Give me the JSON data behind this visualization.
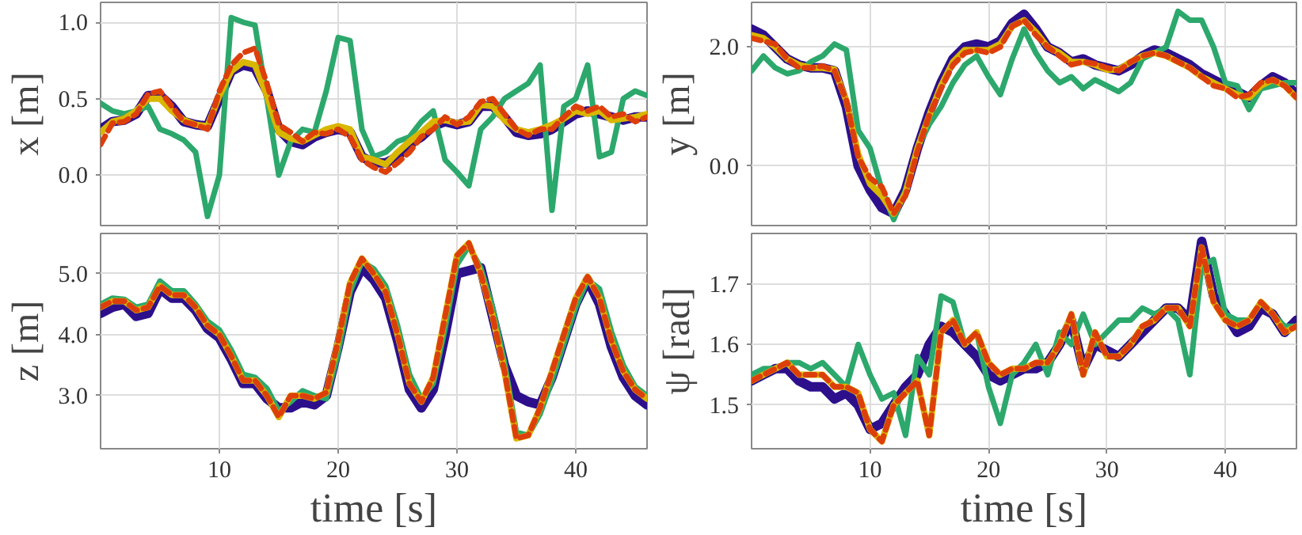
{
  "chart_data": [
    {
      "type": "line",
      "ylabel": "x [m]",
      "tick_labels": "y",
      "grid": true,
      "xlim": [
        0,
        46
      ],
      "xticks": [
        10,
        20,
        30,
        40
      ],
      "ylim": [
        -0.33,
        1.13
      ],
      "yticks": [
        {
          "value": 0,
          "label": "0.0"
        },
        {
          "value": 0.5,
          "label": "0.5"
        },
        {
          "value": 1,
          "label": "1.0"
        }
      ],
      "x": [
        0,
        1,
        2,
        3,
        4,
        5,
        6,
        7,
        8,
        9,
        10,
        11,
        12,
        13,
        14,
        15,
        16,
        17,
        18,
        19,
        20,
        21,
        22,
        23,
        24,
        25,
        26,
        27,
        28,
        29,
        30,
        31,
        32,
        33,
        34,
        35,
        36,
        37,
        38,
        39,
        40,
        41,
        42,
        43,
        44,
        45,
        46
      ],
      "series": [
        {
          "color": "#2d0f8c",
          "values": [
            0.3,
            0.35,
            0.36,
            0.4,
            0.52,
            0.52,
            0.45,
            0.35,
            0.33,
            0.32,
            0.5,
            0.68,
            0.72,
            0.7,
            0.55,
            0.3,
            0.22,
            0.2,
            0.25,
            0.28,
            0.3,
            0.28,
            0.12,
            0.08,
            0.08,
            0.12,
            0.2,
            0.25,
            0.32,
            0.35,
            0.33,
            0.35,
            0.45,
            0.45,
            0.38,
            0.28,
            0.26,
            0.27,
            0.3,
            0.35,
            0.4,
            0.42,
            0.4,
            0.38,
            0.36,
            0.38,
            0.38
          ]
        },
        {
          "color": "#2ca86c",
          "values": [
            0.47,
            0.42,
            0.4,
            0.42,
            0.45,
            0.3,
            0.27,
            0.23,
            0.15,
            -0.27,
            0.0,
            1.03,
            1.0,
            0.98,
            0.5,
            0.0,
            0.22,
            0.3,
            0.28,
            0.55,
            0.9,
            0.88,
            0.3,
            0.12,
            0.15,
            0.22,
            0.25,
            0.35,
            0.42,
            0.1,
            0.02,
            -0.07,
            0.3,
            0.38,
            0.5,
            0.55,
            0.6,
            0.72,
            -0.23,
            0.45,
            0.5,
            0.72,
            0.12,
            0.15,
            0.5,
            0.55,
            0.52
          ]
        },
        {
          "color": "#d9b600",
          "values": [
            0.28,
            0.35,
            0.37,
            0.42,
            0.5,
            0.5,
            0.42,
            0.36,
            0.33,
            0.32,
            0.52,
            0.68,
            0.74,
            0.72,
            0.52,
            0.28,
            0.24,
            0.22,
            0.26,
            0.3,
            0.32,
            0.3,
            0.12,
            0.1,
            0.07,
            0.15,
            0.22,
            0.28,
            0.35,
            0.36,
            0.34,
            0.35,
            0.46,
            0.45,
            0.36,
            0.3,
            0.28,
            0.3,
            0.33,
            0.37,
            0.42,
            0.4,
            0.42,
            0.36,
            0.37,
            0.38,
            0.4
          ]
        },
        {
          "color": "#dd3f0b",
          "line_style": "dashed",
          "values": [
            0.2,
            0.34,
            0.35,
            0.4,
            0.53,
            0.55,
            0.45,
            0.35,
            0.33,
            0.3,
            0.55,
            0.72,
            0.8,
            0.83,
            0.6,
            0.33,
            0.28,
            0.22,
            0.28,
            0.27,
            0.3,
            0.25,
            0.1,
            0.05,
            0.02,
            0.08,
            0.15,
            0.25,
            0.3,
            0.38,
            0.33,
            0.38,
            0.48,
            0.5,
            0.4,
            0.3,
            0.26,
            0.3,
            0.3,
            0.38,
            0.45,
            0.42,
            0.45,
            0.38,
            0.4,
            0.35,
            0.38
          ]
        }
      ]
    },
    {
      "type": "line",
      "ylabel": "y [m]",
      "tick_labels": "y",
      "grid": true,
      "xlim": [
        0,
        46
      ],
      "xticks": [
        10,
        20,
        30,
        40
      ],
      "ylim": [
        -1.0,
        2.75
      ],
      "yticks": [
        {
          "value": 0,
          "label": "0.0"
        },
        {
          "value": 2,
          "label": "2.0"
        }
      ],
      "x": [
        0,
        1,
        2,
        3,
        4,
        5,
        6,
        7,
        8,
        9,
        10,
        11,
        12,
        13,
        14,
        15,
        16,
        17,
        18,
        19,
        20,
        21,
        22,
        23,
        24,
        25,
        26,
        27,
        28,
        29,
        30,
        31,
        32,
        33,
        34,
        35,
        36,
        37,
        38,
        39,
        40,
        41,
        42,
        43,
        44,
        45,
        46
      ],
      "series": [
        {
          "color": "#2d0f8c",
          "values": [
            2.3,
            2.2,
            2.0,
            1.8,
            1.7,
            1.65,
            1.65,
            1.6,
            1.0,
            0.0,
            -0.4,
            -0.7,
            -0.8,
            -0.4,
            0.3,
            0.9,
            1.4,
            1.8,
            2.0,
            2.05,
            2.0,
            2.1,
            2.4,
            2.55,
            2.3,
            2.0,
            1.9,
            1.75,
            1.8,
            1.7,
            1.65,
            1.6,
            1.7,
            1.85,
            1.95,
            1.9,
            1.8,
            1.7,
            1.55,
            1.45,
            1.35,
            1.25,
            1.15,
            1.35,
            1.5,
            1.4,
            1.2
          ]
        },
        {
          "color": "#2ca86c",
          "values": [
            1.6,
            1.85,
            1.65,
            1.55,
            1.6,
            1.75,
            1.85,
            2.05,
            1.95,
            0.6,
            0.3,
            -0.4,
            -0.9,
            -0.4,
            0.3,
            0.7,
            1.0,
            1.4,
            1.7,
            1.85,
            1.5,
            1.2,
            1.8,
            2.3,
            1.9,
            1.6,
            1.4,
            1.5,
            1.3,
            1.45,
            1.35,
            1.25,
            1.4,
            1.8,
            1.9,
            2.0,
            2.6,
            2.45,
            2.45,
            2.0,
            1.4,
            1.35,
            0.95,
            1.3,
            1.35,
            1.4,
            1.4
          ]
        },
        {
          "color": "#d9b600",
          "values": [
            2.2,
            2.15,
            2.0,
            1.8,
            1.7,
            1.65,
            1.65,
            1.62,
            1.1,
            0.2,
            -0.3,
            -0.5,
            -0.8,
            -0.45,
            0.3,
            0.85,
            1.35,
            1.75,
            1.95,
            1.95,
            1.95,
            2.05,
            2.35,
            2.45,
            2.25,
            2.0,
            1.9,
            1.75,
            1.75,
            1.7,
            1.62,
            1.62,
            1.75,
            1.85,
            1.9,
            1.85,
            1.75,
            1.65,
            1.5,
            1.4,
            1.3,
            1.2,
            1.15,
            1.35,
            1.45,
            1.35,
            1.15
          ]
        },
        {
          "color": "#dd3f0b",
          "line_style": "dashed",
          "values": [
            2.15,
            2.1,
            2.05,
            1.8,
            1.65,
            1.65,
            1.68,
            1.6,
            1.1,
            0.15,
            -0.2,
            -0.35,
            -0.8,
            -0.5,
            0.25,
            0.85,
            1.3,
            1.7,
            1.9,
            1.95,
            1.9,
            2.0,
            2.35,
            2.45,
            2.2,
            2.0,
            1.85,
            1.7,
            1.75,
            1.72,
            1.65,
            1.6,
            1.75,
            1.85,
            1.9,
            1.85,
            1.75,
            1.65,
            1.5,
            1.35,
            1.3,
            1.15,
            1.2,
            1.4,
            1.45,
            1.35,
            1.15
          ]
        }
      ]
    },
    {
      "type": "line",
      "ylabel": "z [m]",
      "xlabel": "time [s]",
      "grid": true,
      "xlim": [
        0,
        46
      ],
      "xticks": [
        10,
        20,
        30,
        40
      ],
      "ylim": [
        2.13,
        5.66
      ],
      "yticks": [
        {
          "value": 3,
          "label": "3.0"
        },
        {
          "value": 4,
          "label": "4.0"
        },
        {
          "value": 5,
          "label": "5.0"
        }
      ],
      "x": [
        0,
        1,
        2,
        3,
        4,
        5,
        6,
        7,
        8,
        9,
        10,
        11,
        12,
        13,
        14,
        15,
        16,
        17,
        18,
        19,
        20,
        21,
        22,
        23,
        24,
        25,
        26,
        27,
        28,
        29,
        30,
        31,
        32,
        33,
        34,
        35,
        36,
        37,
        38,
        39,
        40,
        41,
        42,
        43,
        44,
        45,
        46
      ],
      "series": [
        {
          "color": "#2d0f8c",
          "values": [
            4.35,
            4.45,
            4.5,
            4.3,
            4.35,
            4.75,
            4.6,
            4.6,
            4.4,
            4.1,
            3.95,
            3.6,
            3.2,
            3.2,
            2.95,
            2.8,
            2.8,
            2.9,
            2.85,
            3.0,
            3.8,
            4.7,
            5.1,
            4.9,
            4.6,
            3.9,
            3.1,
            2.8,
            3.1,
            4.0,
            5.0,
            5.05,
            5.1,
            4.3,
            3.5,
            3.0,
            2.9,
            2.85,
            3.3,
            3.9,
            4.5,
            4.9,
            4.5,
            3.8,
            3.3,
            3.0,
            2.85
          ]
        },
        {
          "color": "#2ca86c",
          "values": [
            4.5,
            4.6,
            4.58,
            4.45,
            4.5,
            4.88,
            4.72,
            4.72,
            4.5,
            4.22,
            4.08,
            3.75,
            3.35,
            3.3,
            3.12,
            2.75,
            2.9,
            3.08,
            3.0,
            2.95,
            3.7,
            4.7,
            5.2,
            5.08,
            4.8,
            4.15,
            3.35,
            2.95,
            3.2,
            4.1,
            5.15,
            5.45,
            5.1,
            4.45,
            3.55,
            2.4,
            2.35,
            2.7,
            3.25,
            3.85,
            4.45,
            4.9,
            4.75,
            4.05,
            3.5,
            3.15,
            3.0
          ]
        },
        {
          "color": "#d9b600",
          "values": [
            4.45,
            4.55,
            4.55,
            4.4,
            4.45,
            4.8,
            4.65,
            4.65,
            4.45,
            4.15,
            4.0,
            3.65,
            3.25,
            3.25,
            3.0,
            2.65,
            3.0,
            3.0,
            2.95,
            3.05,
            3.9,
            4.85,
            5.25,
            5.0,
            4.7,
            4.0,
            3.2,
            2.9,
            3.3,
            4.3,
            5.3,
            5.5,
            5.0,
            4.3,
            3.4,
            2.3,
            2.35,
            2.8,
            3.4,
            4.0,
            4.6,
            4.95,
            4.6,
            3.9,
            3.4,
            3.1,
            2.95
          ]
        },
        {
          "color": "#dd3f0b",
          "line_style": "dashed",
          "values": [
            4.45,
            4.55,
            4.55,
            4.4,
            4.45,
            4.8,
            4.65,
            4.65,
            4.45,
            4.15,
            4.0,
            3.65,
            3.25,
            3.25,
            3.0,
            2.65,
            3.0,
            3.0,
            2.95,
            3.05,
            3.9,
            4.85,
            5.25,
            5.0,
            4.7,
            4.0,
            3.2,
            2.9,
            3.3,
            4.3,
            5.3,
            5.5,
            5.0,
            4.3,
            3.4,
            2.3,
            2.35,
            2.8,
            3.4,
            4.0,
            4.6,
            4.95,
            4.6,
            3.9,
            3.4,
            3.1,
            2.95
          ]
        }
      ]
    },
    {
      "type": "line",
      "ylabel": "ψ [rad]",
      "xlabel": "time [s]",
      "grid": true,
      "xlim": [
        0,
        46
      ],
      "xticks": [
        10,
        20,
        30,
        40
      ],
      "ylim": [
        1.428,
        1.783
      ],
      "yticks": [
        {
          "value": 1.5,
          "label": "1.5"
        },
        {
          "value": 1.6,
          "label": "1.6"
        },
        {
          "value": 1.7,
          "label": "1.7"
        }
      ],
      "x": [
        0,
        1,
        2,
        3,
        4,
        5,
        6,
        7,
        8,
        9,
        10,
        11,
        12,
        13,
        14,
        15,
        16,
        17,
        18,
        19,
        20,
        21,
        22,
        23,
        24,
        25,
        26,
        27,
        28,
        29,
        30,
        31,
        32,
        33,
        34,
        35,
        36,
        37,
        38,
        39,
        40,
        41,
        42,
        43,
        44,
        45,
        46
      ],
      "series": [
        {
          "color": "#2d0f8c",
          "values": [
            1.54,
            1.55,
            1.56,
            1.56,
            1.54,
            1.53,
            1.53,
            1.51,
            1.52,
            1.5,
            1.46,
            1.47,
            1.5,
            1.53,
            1.55,
            1.6,
            1.63,
            1.62,
            1.6,
            1.58,
            1.55,
            1.54,
            1.55,
            1.56,
            1.56,
            1.57,
            1.6,
            1.64,
            1.56,
            1.6,
            1.59,
            1.58,
            1.6,
            1.62,
            1.64,
            1.66,
            1.66,
            1.64,
            1.77,
            1.68,
            1.65,
            1.62,
            1.63,
            1.66,
            1.65,
            1.62,
            1.64
          ]
        },
        {
          "color": "#2ca86c",
          "values": [
            1.55,
            1.56,
            1.56,
            1.57,
            1.57,
            1.56,
            1.57,
            1.55,
            1.53,
            1.6,
            1.55,
            1.51,
            1.52,
            1.45,
            1.58,
            1.55,
            1.68,
            1.67,
            1.6,
            1.62,
            1.53,
            1.47,
            1.55,
            1.57,
            1.6,
            1.55,
            1.62,
            1.6,
            1.65,
            1.6,
            1.62,
            1.64,
            1.64,
            1.66,
            1.65,
            1.66,
            1.64,
            1.55,
            1.73,
            1.74,
            1.65,
            1.64,
            1.64,
            1.67,
            1.65,
            1.63,
            1.63
          ]
        },
        {
          "color": "#d9b600",
          "values": [
            1.54,
            1.55,
            1.56,
            1.57,
            1.55,
            1.55,
            1.55,
            1.53,
            1.53,
            1.52,
            1.46,
            1.44,
            1.5,
            1.52,
            1.54,
            1.45,
            1.62,
            1.64,
            1.6,
            1.62,
            1.57,
            1.55,
            1.56,
            1.56,
            1.57,
            1.57,
            1.6,
            1.65,
            1.55,
            1.62,
            1.58,
            1.58,
            1.6,
            1.63,
            1.64,
            1.66,
            1.66,
            1.63,
            1.76,
            1.67,
            1.64,
            1.63,
            1.64,
            1.67,
            1.65,
            1.62,
            1.63
          ]
        },
        {
          "color": "#dd3f0b",
          "line_style": "dashed",
          "values": [
            1.54,
            1.55,
            1.56,
            1.57,
            1.55,
            1.55,
            1.55,
            1.53,
            1.53,
            1.52,
            1.46,
            1.44,
            1.5,
            1.52,
            1.54,
            1.45,
            1.62,
            1.64,
            1.6,
            1.62,
            1.57,
            1.55,
            1.56,
            1.56,
            1.57,
            1.57,
            1.6,
            1.65,
            1.55,
            1.62,
            1.58,
            1.58,
            1.6,
            1.63,
            1.64,
            1.66,
            1.66,
            1.63,
            1.76,
            1.67,
            1.64,
            1.63,
            1.64,
            1.67,
            1.65,
            1.62,
            1.63
          ]
        }
      ]
    }
  ]
}
